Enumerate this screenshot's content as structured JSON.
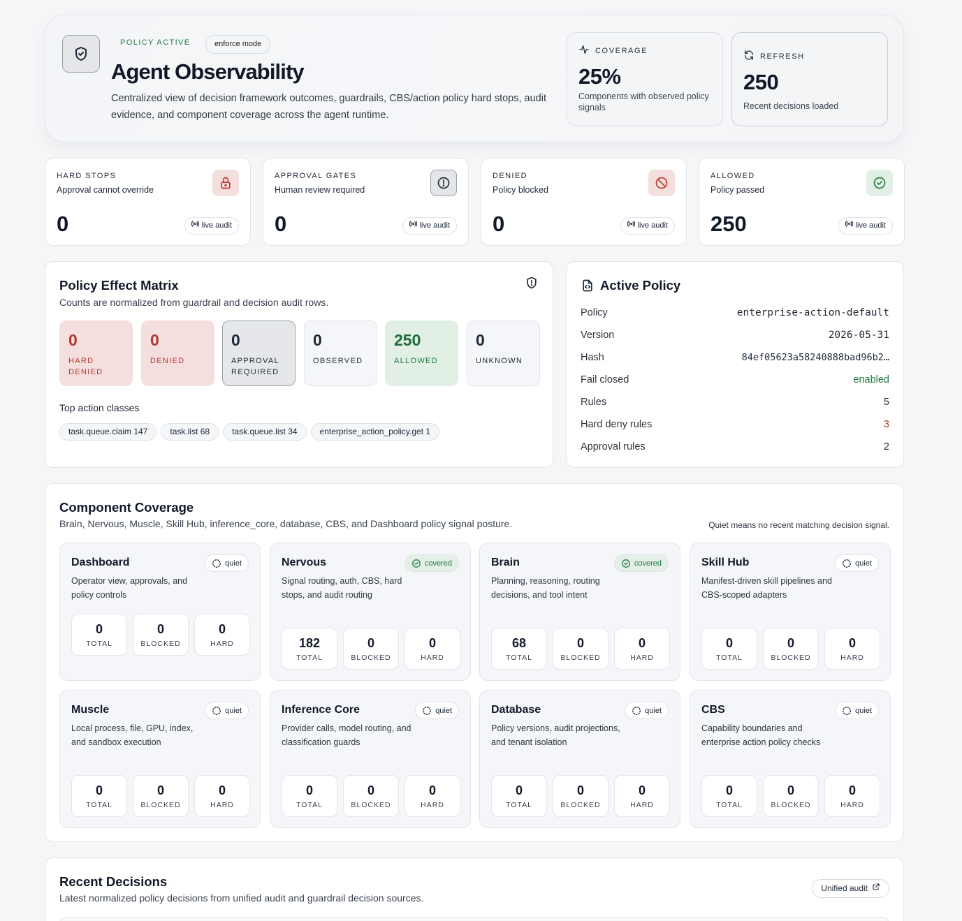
{
  "header": {
    "status": "POLICY ACTIVE",
    "mode": "enforce mode",
    "title": "Agent Observability",
    "description": "Centralized view of decision framework outcomes, guardrails, CBS/action policy hard stops, audit evidence, and component coverage across the agent runtime.",
    "coverage": {
      "label": "COVERAGE",
      "value": "25%",
      "sub": "Components with observed policy signals"
    },
    "refresh": {
      "label": "REFRESH",
      "value": "250",
      "sub": "Recent decisions loaded"
    }
  },
  "kpis": [
    {
      "label": "HARD STOPS",
      "sub": "Approval cannot override",
      "value": "0",
      "chip": "live audit",
      "icon": "lock-icon",
      "tone": "#c0392b"
    },
    {
      "label": "APPROVAL GATES",
      "sub": "Human review required",
      "value": "0",
      "chip": "live audit",
      "icon": "alert-circle-icon",
      "tone": "#1f2937"
    },
    {
      "label": "DENIED",
      "sub": "Policy blocked",
      "value": "0",
      "chip": "live audit",
      "icon": "ban-icon",
      "tone": "#c0392b"
    },
    {
      "label": "ALLOWED",
      "sub": "Policy passed",
      "value": "250",
      "chip": "live audit",
      "icon": "check-circle-icon",
      "tone": "#1f7a3f"
    }
  ],
  "matrix": {
    "title": "Policy Effect Matrix",
    "subtitle": "Counts are normalized from guardrail and decision audit rows.",
    "effects": [
      {
        "value": "0",
        "label": "HARD DENIED"
      },
      {
        "value": "0",
        "label": "DENIED"
      },
      {
        "value": "0",
        "label": "APPROVAL REQUIRED"
      },
      {
        "value": "0",
        "label": "OBSERVED"
      },
      {
        "value": "250",
        "label": "ALLOWED"
      },
      {
        "value": "0",
        "label": "UNKNOWN"
      }
    ],
    "top_label": "Top action classes",
    "top_classes": [
      "task.queue.claim 147",
      "task.list 68",
      "task.queue.list 34",
      "enterprise_action_policy.get 1"
    ]
  },
  "active_policy": {
    "title": "Active Policy",
    "rows": [
      {
        "key": "Policy",
        "value": "enterprise-action-default"
      },
      {
        "key": "Version",
        "value": "2026-05-31"
      },
      {
        "key": "Hash",
        "value": "84ef05623a58240888bad96b2…"
      },
      {
        "key": "Fail closed",
        "value": "enabled"
      },
      {
        "key": "Rules",
        "value": "5"
      },
      {
        "key": "Hard deny rules",
        "value": "3"
      },
      {
        "key": "Approval rules",
        "value": "2"
      }
    ]
  },
  "coverage": {
    "title": "Component Coverage",
    "subtitle": "Brain, Nervous, Muscle, Skill Hub, inference_core, database, CBS, and Dashboard policy signal posture.",
    "note": "Quiet means no recent matching decision signal.",
    "stat_labels": {
      "total": "TOTAL",
      "blocked": "BLOCKED",
      "hard": "HARD"
    },
    "components": [
      {
        "name": "Dashboard",
        "desc": "Operator view, approvals, and policy controls",
        "status": "quiet",
        "total": "0",
        "blocked": "0",
        "hard": "0"
      },
      {
        "name": "Nervous",
        "desc": "Signal routing, auth, CBS, hard stops, and audit routing",
        "status": "covered",
        "total": "182",
        "blocked": "0",
        "hard": "0"
      },
      {
        "name": "Brain",
        "desc": "Planning, reasoning, routing decisions, and tool intent",
        "status": "covered",
        "total": "68",
        "blocked": "0",
        "hard": "0"
      },
      {
        "name": "Skill Hub",
        "desc": "Manifest-driven skill pipelines and CBS-scoped adapters",
        "status": "quiet",
        "total": "0",
        "blocked": "0",
        "hard": "0"
      },
      {
        "name": "Muscle",
        "desc": "Local process, file, GPU, index, and sandbox execution",
        "status": "quiet",
        "total": "0",
        "blocked": "0",
        "hard": "0"
      },
      {
        "name": "Inference Core",
        "desc": "Provider calls, model routing, and classification guards",
        "status": "quiet",
        "total": "0",
        "blocked": "0",
        "hard": "0"
      },
      {
        "name": "Database",
        "desc": "Policy versions, audit projections, and tenant isolation",
        "status": "quiet",
        "total": "0",
        "blocked": "0",
        "hard": "0"
      },
      {
        "name": "CBS",
        "desc": "Capability boundaries and enterprise action policy checks",
        "status": "quiet",
        "total": "0",
        "blocked": "0",
        "hard": "0"
      }
    ]
  },
  "recent": {
    "title": "Recent Decisions",
    "subtitle": "Latest normalized policy decisions from unified audit and guardrail decision sources.",
    "button": "Unified audit"
  }
}
